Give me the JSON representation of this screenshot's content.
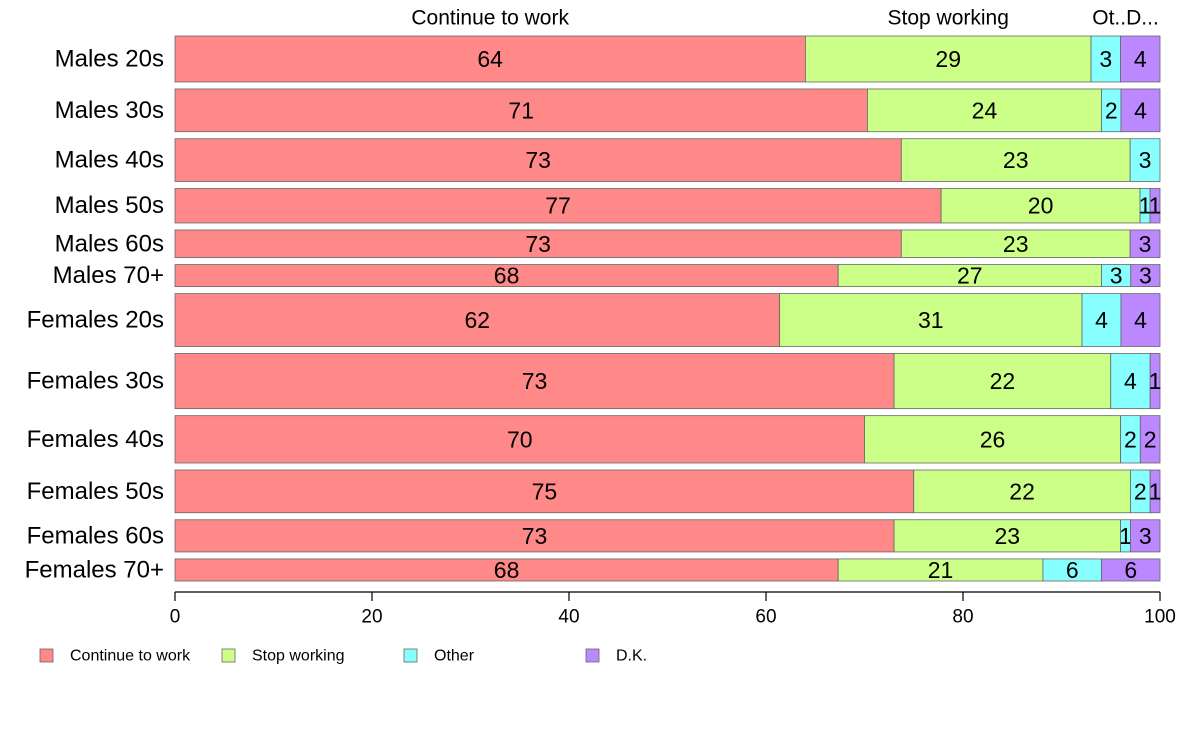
{
  "chart_data": {
    "type": "bar",
    "orientation": "horizontal",
    "stacked": true,
    "categories": [
      "Males 20s",
      "Males 30s",
      "Males 40s",
      "Males 50s",
      "Males 60s",
      "Males 70+",
      "Females 20s",
      "Females 30s",
      "Females 40s",
      "Females 50s",
      "Females 60s",
      "Females 70+"
    ],
    "relative_widths": [
      1.0,
      0.93,
      0.93,
      0.75,
      0.6,
      0.48,
      1.15,
      1.2,
      1.03,
      0.93,
      0.7,
      0.48
    ],
    "series": [
      {
        "name": "Continue to work",
        "color": "#ff8888",
        "values": [
          64,
          71,
          73,
          77,
          73,
          68,
          62,
          73,
          70,
          75,
          73,
          68
        ],
        "labels": [
          "64",
          "71",
          "73",
          "77",
          "73",
          "68",
          "62",
          "73",
          "70",
          "75",
          "73",
          "68"
        ]
      },
      {
        "name": "Stop working",
        "color": "#ccff88",
        "values": [
          29,
          24,
          23,
          20,
          23,
          27,
          31,
          22,
          26,
          22,
          23,
          21
        ],
        "labels": [
          "29",
          "24",
          "23",
          "20",
          "23",
          "27",
          "31",
          "22",
          "26",
          "22",
          "23",
          "21"
        ]
      },
      {
        "name": "Other",
        "color": "#88ffff",
        "values": [
          3,
          2,
          3,
          1,
          0,
          3,
          4,
          4,
          2,
          2,
          1,
          6
        ],
        "labels": [
          "3",
          "2",
          "3",
          "1",
          "",
          "3",
          "4",
          "4",
          "2",
          "2",
          "1",
          "6"
        ]
      },
      {
        "name": "D.K.",
        "color": "#bb88ff",
        "values": [
          4,
          4,
          0,
          1,
          3,
          3,
          4,
          1,
          2,
          1,
          3,
          6
        ],
        "labels": [
          "4",
          "4",
          "",
          "1",
          "3",
          "3",
          "4",
          "1",
          "2",
          "1",
          "3",
          "6"
        ]
      }
    ],
    "top_labels": [
      "Continue to work",
      "Stop working",
      "Ot..D..."
    ],
    "xlim": [
      0,
      100
    ],
    "xticks": [
      "0",
      "20",
      "40",
      "60",
      "80",
      "100"
    ],
    "legend": {
      "placement": "bottom-left",
      "entries": [
        "Continue to work",
        "Stop working",
        "Other",
        "D.K."
      ]
    },
    "grid": false
  }
}
